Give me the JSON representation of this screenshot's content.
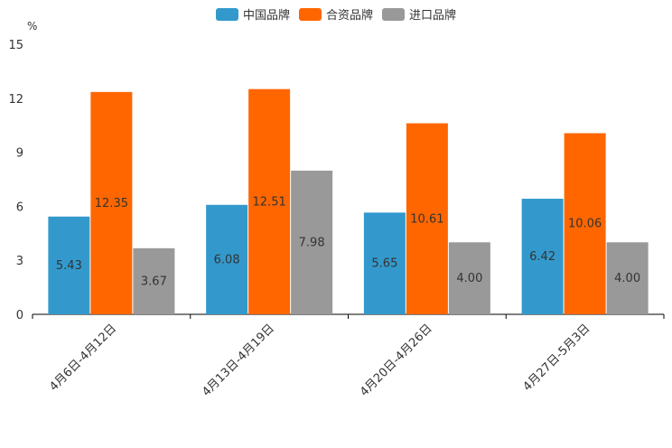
{
  "chart_data": {
    "type": "bar",
    "unit_label": "%",
    "categories": [
      "4月6日-4月12日",
      "4月13日-4月19日",
      "4月20日-4月26日",
      "4月27日-5月3日"
    ],
    "series": [
      {
        "name": "中国品牌",
        "color": "#3399CC",
        "values": [
          5.43,
          6.08,
          5.65,
          6.42
        ],
        "labels": [
          "5.43",
          "6.08",
          "5.65",
          "6.42"
        ]
      },
      {
        "name": "合资品牌",
        "color": "#FF6600",
        "values": [
          12.35,
          12.51,
          10.61,
          10.06
        ],
        "labels": [
          "12.35",
          "12.51",
          "10.61",
          "10.06"
        ]
      },
      {
        "name": "进口品牌",
        "color": "#999999",
        "values": [
          3.67,
          7.98,
          4.0,
          4.0
        ],
        "labels": [
          "3.67",
          "7.98",
          "4.00",
          "4.00"
        ]
      }
    ],
    "y_ticks": [
      0,
      3,
      6,
      9,
      12,
      15
    ],
    "ylim": [
      0,
      15
    ],
    "legend_position": "top-center"
  }
}
